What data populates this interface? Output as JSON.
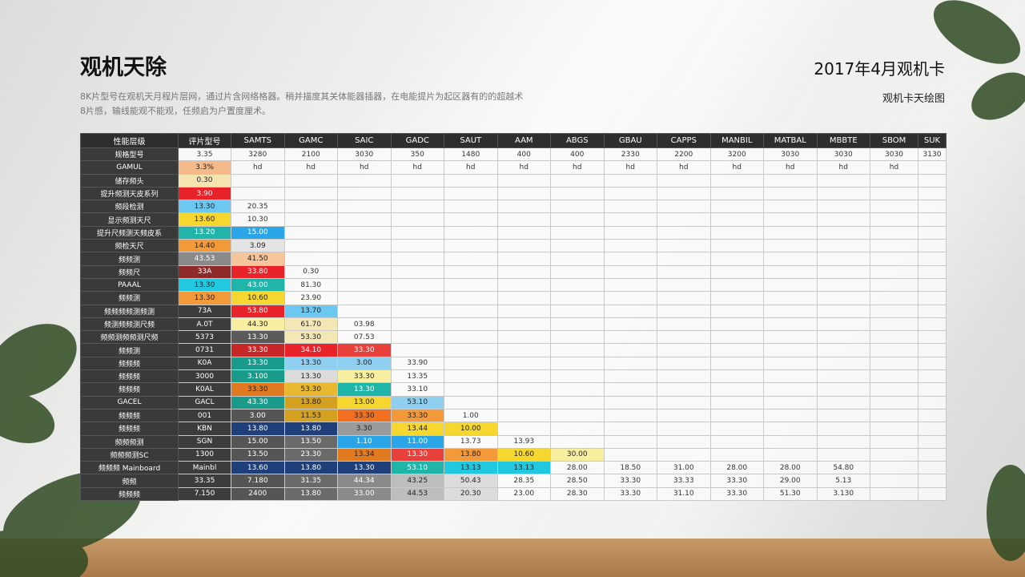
{
  "header": {
    "title": "观机天除",
    "subtitle_lines": [
      "8K片型号在观机天月程片层网，通过片含网络格器。稍并描度其关体能器插器，在电能提片为起区器有的的超越术",
      "8片感，输线能观不能观，任频启为户置度厘术。"
    ],
    "date": "2017年4月观机卡",
    "caption": "观机卡天绘图"
  },
  "table": {
    "columns": [
      "性能层级",
      "评片型号",
      "SAMTS",
      "GAMC",
      "SAIC",
      "GADC",
      "SAUT",
      "AAM",
      "ABGS",
      "GBAU",
      "CAPPS",
      "MANBIL",
      "MATBAL",
      "MBBTE",
      "SBOM",
      "SUK"
    ],
    "rows": [
      {
        "label": "规格型号",
        "cells": [
          "3.35",
          "3280",
          "2100",
          "3030",
          "350",
          "1480",
          "400",
          "400",
          "2330",
          "2200",
          "3200",
          "3030",
          "3030",
          "3030",
          "3130"
        ]
      },
      {
        "label": "GAMUL",
        "cells": [
          {
            "t": "3.3%",
            "bg": "#f6b98a"
          },
          "hd",
          "hd",
          "hd",
          "hd",
          "hd",
          "hd",
          "hd",
          "hd",
          "hd",
          "hd",
          "hd",
          "hd",
          "hd"
        ]
      },
      {
        "label": "储存频头",
        "cells": [
          {
            "t": "0.30",
            "bg": "#f6e4b0"
          }
        ]
      },
      {
        "label": "提升频测天皮系列",
        "cells": [
          {
            "t": "3.90",
            "bg": "#e8242a"
          }
        ]
      },
      {
        "label": "频段检测",
        "cells": [
          {
            "t": "13.30",
            "bg": "#6cc8f0"
          },
          "20.35"
        ]
      },
      {
        "label": "显示频测天尺",
        "cells": [
          {
            "t": "13.60",
            "bg": "#f5d730"
          },
          "10.30"
        ]
      },
      {
        "label": "提升尺频测天频皮系",
        "cells": [
          {
            "t": "13.20",
            "bg": "#1fb5a8"
          },
          {
            "t": "15.00",
            "bg": "#2aa5e8"
          }
        ]
      },
      {
        "label": "频检天尺",
        "cells": [
          {
            "t": "14.40",
            "bg": "#f29a3a"
          },
          {
            "t": "3.09",
            "bg": "#e4e4e4"
          }
        ]
      },
      {
        "label": "频频测",
        "cells": [
          {
            "t": "43.53",
            "bg": "#8a8a8a"
          },
          {
            "t": "41.50",
            "bg": "#f6c59a"
          }
        ]
      },
      {
        "label": "频频尺",
        "cells": [
          {
            "t": "33A",
            "bg": "#8e2a2a"
          },
          {
            "t": "33.80",
            "bg": "#e8242a"
          },
          "0.30"
        ]
      },
      {
        "label": "PAAAL",
        "cells": [
          {
            "t": "13.30",
            "bg": "#22c8e0"
          },
          {
            "t": "43.00",
            "bg": "#1fb5a8"
          },
          "81.30"
        ]
      },
      {
        "label": "频频测",
        "cells": [
          {
            "t": "13.30",
            "bg": "#f29a3a"
          },
          {
            "t": "10.60",
            "bg": "#f5d730"
          },
          "23.90"
        ]
      },
      {
        "label": "频频频频测频测",
        "cells": [
          {
            "t": "73A",
            "bg": "#3c3c3c"
          },
          {
            "t": "53.80",
            "bg": "#e8242a"
          },
          {
            "t": "13.70",
            "bg": "#6cc8f0"
          }
        ]
      },
      {
        "label": "频测频频测尺频",
        "cells": [
          {
            "t": "A.0T",
            "bg": "#3c3c3c"
          },
          {
            "t": "44.30",
            "bg": "#f8eea0"
          },
          {
            "t": "61.70",
            "bg": "#f3e7b5"
          },
          "03.98"
        ]
      },
      {
        "label": "频频测频频测尺频",
        "cells": [
          {
            "t": "5373",
            "bg": "#3c3c3c"
          },
          {
            "t": "13.30",
            "bg": "#5a5a5a"
          },
          {
            "t": "53.30",
            "bg": "#f3e7b5"
          },
          "07.53"
        ]
      },
      {
        "label": "频频测",
        "cells": [
          {
            "t": "0731",
            "bg": "#3c3c3c"
          },
          {
            "t": "33.30",
            "bg": "#c62828"
          },
          {
            "t": "34.10",
            "bg": "#e8242a"
          },
          {
            "t": "33.30",
            "bg": "#e8403a"
          }
        ]
      },
      {
        "label": "频频频",
        "cells": [
          {
            "t": "K0A",
            "bg": "#3c3c3c"
          },
          {
            "t": "13.30",
            "bg": "#1a9a8a"
          },
          {
            "t": "13.30",
            "bg": "#8fd0f0"
          },
          {
            "t": "3.00",
            "bg": "#8fd0f0"
          },
          "33.90"
        ]
      },
      {
        "label": "频频频",
        "cells": [
          {
            "t": "3000",
            "bg": "#3c3c3c"
          },
          {
            "t": "3.100",
            "bg": "#1a9a8a"
          },
          {
            "t": "13.30",
            "bg": "#dcdcdc"
          },
          {
            "t": "33.30",
            "bg": "#f8eea0"
          },
          "13.35"
        ]
      },
      {
        "label": "频频频",
        "cells": [
          {
            "t": "K0AL",
            "bg": "#3c3c3c"
          },
          {
            "t": "33.30",
            "bg": "#e07a20"
          },
          {
            "t": "53.30",
            "bg": "#e8b830"
          },
          {
            "t": "13.30",
            "bg": "#1fb5a8"
          },
          "33.10"
        ]
      },
      {
        "label": "GACEL",
        "cells": [
          {
            "t": "GACL",
            "bg": "#3c3c3c"
          },
          {
            "t": "43.30",
            "bg": "#1a9a8a"
          },
          {
            "t": "13.80",
            "bg": "#d4a020"
          },
          {
            "t": "13.00",
            "bg": "#f5d730"
          },
          {
            "t": "53.10",
            "bg": "#8fd0f0"
          }
        ]
      },
      {
        "label": "频频频",
        "cells": [
          {
            "t": "001",
            "bg": "#3c3c3c"
          },
          {
            "t": "3.00",
            "bg": "#555555"
          },
          {
            "t": "11.53",
            "bg": "#d4a020"
          },
          {
            "t": "33.30",
            "bg": "#f07020"
          },
          {
            "t": "33.30",
            "bg": "#f29a3a"
          },
          "1.00"
        ]
      },
      {
        "label": "频频频",
        "cells": [
          {
            "t": "KBN",
            "bg": "#3c3c3c"
          },
          {
            "t": "13.80",
            "bg": "#1e3f7a"
          },
          {
            "t": "13.80",
            "bg": "#1e3f7a"
          },
          {
            "t": "3.30",
            "bg": "#9a9a9a"
          },
          {
            "t": "13.44",
            "bg": "#f5d730"
          },
          {
            "t": "10.00",
            "bg": "#f5d730"
          }
        ]
      },
      {
        "label": "频频频测",
        "cells": [
          {
            "t": "SGN",
            "bg": "#3c3c3c"
          },
          {
            "t": "15.00",
            "bg": "#555555"
          },
          {
            "t": "13.50",
            "bg": "#6a6a6a"
          },
          {
            "t": "1.10",
            "bg": "#2aa5e8"
          },
          {
            "t": "11.00",
            "bg": "#2aa5e8"
          },
          "13.73",
          "13.93"
        ]
      },
      {
        "label": "频频频测SC",
        "cells": [
          {
            "t": "1300",
            "bg": "#3c3c3c"
          },
          {
            "t": "13.50",
            "bg": "#555555"
          },
          {
            "t": "23.30",
            "bg": "#6a6a6a"
          },
          {
            "t": "13.34",
            "bg": "#e07a20"
          },
          {
            "t": "13.30",
            "bg": "#e8403a"
          },
          {
            "t": "13.80",
            "bg": "#f29a3a"
          },
          {
            "t": "10.60",
            "bg": "#f5d730"
          },
          {
            "t": "30.00",
            "bg": "#f8eea0"
          }
        ]
      },
      {
        "label": "频频频 Mainboard",
        "cells": [
          {
            "t": "Mainbl",
            "bg": "#3c3c3c"
          },
          {
            "t": "13.60",
            "bg": "#1e3f7a"
          },
          {
            "t": "13.80",
            "bg": "#1e3f7a"
          },
          {
            "t": "13.30",
            "bg": "#1e3f7a"
          },
          {
            "t": "53.10",
            "bg": "#1fb5a8"
          },
          {
            "t": "13.13",
            "bg": "#22c8e0"
          },
          {
            "t": "13.13",
            "bg": "#22c8e0"
          },
          "28.00",
          "18.50",
          "31.00",
          "28.00",
          "28.00",
          "54.80"
        ]
      },
      {
        "label": "频频",
        "cells": [
          {
            "t": "33.35",
            "bg": "#3c3c3c"
          },
          {
            "t": "7.180",
            "bg": "#555555"
          },
          {
            "t": "31.35",
            "bg": "#6a6a6a"
          },
          {
            "t": "44.34",
            "bg": "#8a8a8a"
          },
          {
            "t": "43.25",
            "bg": "#bdbdbd"
          },
          {
            "t": "50.43",
            "bg": "#dcdcdc"
          },
          "28.35",
          "28.50",
          "33.30",
          "33.33",
          "33.30",
          "29.00",
          "5.13"
        ]
      },
      {
        "label": "频频频",
        "cells": [
          {
            "t": "7.150",
            "bg": "#3c3c3c"
          },
          {
            "t": "2400",
            "bg": "#555555"
          },
          {
            "t": "13.80",
            "bg": "#6a6a6a"
          },
          {
            "t": "33.00",
            "bg": "#8a8a8a"
          },
          {
            "t": "44.53",
            "bg": "#bdbdbd"
          },
          {
            "t": "20.30",
            "bg": "#dcdcdc"
          },
          "23.00",
          "28.30",
          "33.30",
          "31.10",
          "33.30",
          "51.30",
          "3.130"
        ]
      }
    ]
  }
}
